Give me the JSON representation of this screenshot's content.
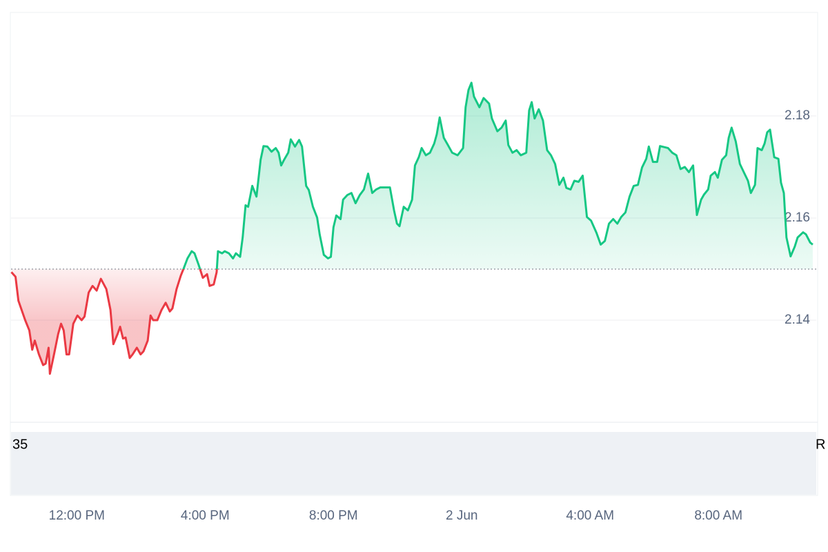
{
  "chart_data": {
    "type": "line",
    "x": [
      9.96,
      10.09,
      10.18,
      10.39,
      10.52,
      10.61,
      10.69,
      10.82,
      10.95,
      11.03,
      11.12,
      11.16,
      11.29,
      11.42,
      11.51,
      11.59,
      11.68,
      11.76,
      11.89,
      12.02,
      12.15,
      12.24,
      12.37,
      12.49,
      12.62,
      12.75,
      12.92,
      13.05,
      13.14,
      13.27,
      13.35,
      13.44,
      13.52,
      13.65,
      13.74,
      13.87,
      13.99,
      14.08,
      14.21,
      14.3,
      14.38,
      14.51,
      14.64,
      14.77,
      14.9,
      14.98,
      15.11,
      15.24,
      15.33,
      15.45,
      15.58,
      15.67,
      15.8,
      15.93,
      16.06,
      16.14,
      16.27,
      16.36,
      16.4,
      16.53,
      16.61,
      16.74,
      16.87,
      16.96,
      17.09,
      17.17,
      17.26,
      17.34,
      17.47,
      17.6,
      17.73,
      17.82,
      17.94,
      18.07,
      18.2,
      18.29,
      18.37,
      18.46,
      18.59,
      18.67,
      18.8,
      18.93,
      19.02,
      19.15,
      19.23,
      19.36,
      19.49,
      19.57,
      19.7,
      19.83,
      19.92,
      20.0,
      20.09,
      20.22,
      20.3,
      20.43,
      20.56,
      20.69,
      20.82,
      20.95,
      21.08,
      21.21,
      21.33,
      21.46,
      21.76,
      21.89,
      21.98,
      22.06,
      22.19,
      22.32,
      22.45,
      22.54,
      22.66,
      22.75,
      22.88,
      23.01,
      23.14,
      23.22,
      23.31,
      23.44,
      23.57,
      23.7,
      23.87,
      24.04,
      24.12,
      24.21,
      24.3,
      24.38,
      24.55,
      24.68,
      24.85,
      24.94,
      25.11,
      25.24,
      25.37,
      25.45,
      25.58,
      25.71,
      25.84,
      26.01,
      26.1,
      26.18,
      26.27,
      26.4,
      26.53,
      26.66,
      26.78,
      26.91,
      27.04,
      27.17,
      27.26,
      27.39,
      27.51,
      27.64,
      27.77,
      27.9,
      28.03,
      28.2,
      28.33,
      28.46,
      28.59,
      28.72,
      28.85,
      28.97,
      29.1,
      29.23,
      29.36,
      29.49,
      29.62,
      29.75,
      29.83,
      29.96,
      30.09,
      30.18,
      30.43,
      30.56,
      30.69,
      30.82,
      30.95,
      31.08,
      31.21,
      31.33,
      31.46,
      31.55,
      31.68,
      31.76,
      31.89,
      31.98,
      32.11,
      32.24,
      32.32,
      32.41,
      32.54,
      32.67,
      32.79,
      32.92,
      33.01,
      33.14,
      33.22,
      33.35,
      33.44,
      33.52,
      33.61,
      33.74,
      33.87,
      33.95,
      34.04,
      34.12,
      34.25,
      34.38,
      34.47,
      34.64,
      34.73,
      34.86,
      34.94
    ],
    "values": [
      2.1494,
      2.1485,
      2.1438,
      2.14,
      2.138,
      2.1342,
      2.136,
      2.1333,
      2.1312,
      2.1315,
      2.1346,
      2.1295,
      2.1333,
      2.1373,
      2.1393,
      2.138,
      2.1333,
      2.1333,
      2.1393,
      2.1409,
      2.14,
      2.1407,
      2.1454,
      2.1467,
      2.1458,
      2.1481,
      2.1461,
      2.142,
      2.1353,
      2.1373,
      2.1387,
      2.1364,
      2.1366,
      2.1326,
      2.1333,
      2.1346,
      2.1333,
      2.1339,
      2.136,
      2.1409,
      2.14,
      2.14,
      2.142,
      2.1434,
      2.1417,
      2.1423,
      2.1461,
      2.1487,
      2.1501,
      2.1521,
      2.1535,
      2.1531,
      2.1508,
      2.1483,
      2.149,
      2.1467,
      2.147,
      2.1494,
      2.1535,
      2.1531,
      2.1535,
      2.1531,
      2.1521,
      2.1531,
      2.1524,
      2.1562,
      2.1625,
      2.1622,
      2.1663,
      2.1642,
      2.1714,
      2.1741,
      2.174,
      2.173,
      2.1737,
      2.1728,
      2.1703,
      2.1714,
      2.1728,
      2.1754,
      2.174,
      2.1753,
      2.174,
      2.1663,
      2.1655,
      2.1622,
      2.1601,
      2.1568,
      2.1528,
      2.1521,
      2.1524,
      2.1582,
      2.1605,
      2.1598,
      2.1636,
      2.1645,
      2.1649,
      2.1629,
      2.1645,
      2.1656,
      2.1687,
      2.1649,
      2.1656,
      2.166,
      2.166,
      2.1615,
      2.1589,
      2.1584,
      2.1622,
      2.1615,
      2.1636,
      2.1703,
      2.1719,
      2.1737,
      2.1723,
      2.1728,
      2.1746,
      2.1764,
      2.1797,
      2.1757,
      2.1743,
      2.1728,
      2.1723,
      2.1737,
      2.1817,
      2.1851,
      2.1865,
      2.1838,
      2.1817,
      2.1835,
      2.1824,
      2.1795,
      2.177,
      2.1777,
      2.1791,
      2.1743,
      2.1728,
      2.1733,
      2.1723,
      2.1728,
      2.1811,
      2.1827,
      2.1795,
      2.1813,
      2.1791,
      2.1733,
      2.1723,
      2.1706,
      2.1665,
      2.1679,
      2.1659,
      2.1656,
      2.1673,
      2.1671,
      2.1683,
      2.1602,
      2.1595,
      2.1571,
      2.1548,
      2.1555,
      2.1589,
      2.1598,
      2.1589,
      2.1602,
      2.1611,
      2.1642,
      2.1663,
      2.1665,
      2.1699,
      2.1716,
      2.174,
      2.171,
      2.171,
      2.1741,
      2.1737,
      2.1728,
      2.1723,
      2.1696,
      2.17,
      2.169,
      2.1703,
      2.1606,
      2.1636,
      2.1646,
      2.1656,
      2.1683,
      2.169,
      2.1679,
      2.1714,
      2.1723,
      2.1757,
      2.1777,
      2.175,
      2.1706,
      2.169,
      2.1673,
      2.1649,
      2.1665,
      2.1737,
      2.1733,
      2.1746,
      2.1768,
      2.1773,
      2.1719,
      2.1716,
      2.1669,
      2.1649,
      2.1562,
      2.1525,
      2.1544,
      2.1562,
      2.1572,
      2.1568,
      2.1552,
      2.1548
    ],
    "baseline": 2.15,
    "colors": {
      "up": "#16c784",
      "down": "#ea3943"
    },
    "xlim": [
      9.95,
      35.05
    ],
    "xticks": [
      {
        "value": 12,
        "label": "12:00 PM"
      },
      {
        "value": 16,
        "label": "4:00 PM"
      },
      {
        "value": 20,
        "label": "8:00 PM"
      },
      {
        "value": 24,
        "label": "2 Jun"
      },
      {
        "value": 28,
        "label": "4:00 AM"
      },
      {
        "value": 32,
        "label": "8:00 AM"
      }
    ],
    "ylim": [
      2.12,
      2.2
    ],
    "yticks": [
      2.14,
      2.16,
      2.18
    ],
    "grid": true,
    "corner_labels": [
      "35",
      "R"
    ]
  }
}
